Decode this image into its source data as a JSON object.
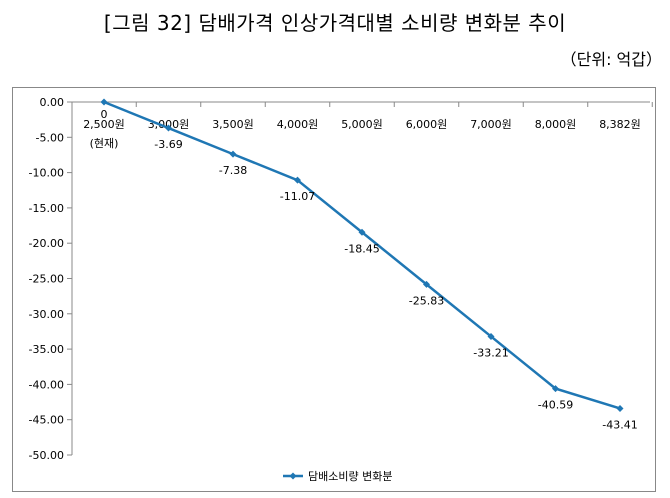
{
  "header": {
    "title": "[그림 32] 담배가격 인상가격대별 소비량 변화분 추이",
    "unit": "（단위: 억갑）"
  },
  "chart_data": {
    "type": "line",
    "title": "[그림 32] 담배가격 인상가격대별 소비량 변화분 추이",
    "categories": [
      "2,500원",
      "3,000원",
      "3,500원",
      "4,000원",
      "5,000원",
      "6,000원",
      "7,000원",
      "8,000원",
      "8,382원"
    ],
    "category_sublabels": [
      "(현재)",
      "",
      "",
      "",
      "",
      "",
      "",
      "",
      ""
    ],
    "series": [
      {
        "name": "담배소비량 변화분",
        "values": [
          0,
          -3.69,
          -7.38,
          -11.07,
          -18.45,
          -25.83,
          -33.21,
          -40.59,
          -43.41
        ],
        "labels": [
          "0",
          "-3.69",
          "-7.38",
          "-11.07",
          "-18.45",
          "-25.83",
          "-33.21",
          "-40.59",
          "-43.41"
        ]
      }
    ],
    "ylim": [
      -50,
      0
    ],
    "yticks": [
      "0.00",
      "-5.00",
      "-10.00",
      "-15.00",
      "-20.00",
      "-25.00",
      "-30.00",
      "-35.00",
      "-40.00",
      "-45.00",
      "-50.00"
    ],
    "ytick_values": [
      0,
      -5,
      -10,
      -15,
      -20,
      -25,
      -30,
      -35,
      -40,
      -45,
      -50
    ],
    "xlabel": "",
    "ylabel": "",
    "legend_position": "bottom",
    "grid": false,
    "color": "#1f77b4"
  }
}
